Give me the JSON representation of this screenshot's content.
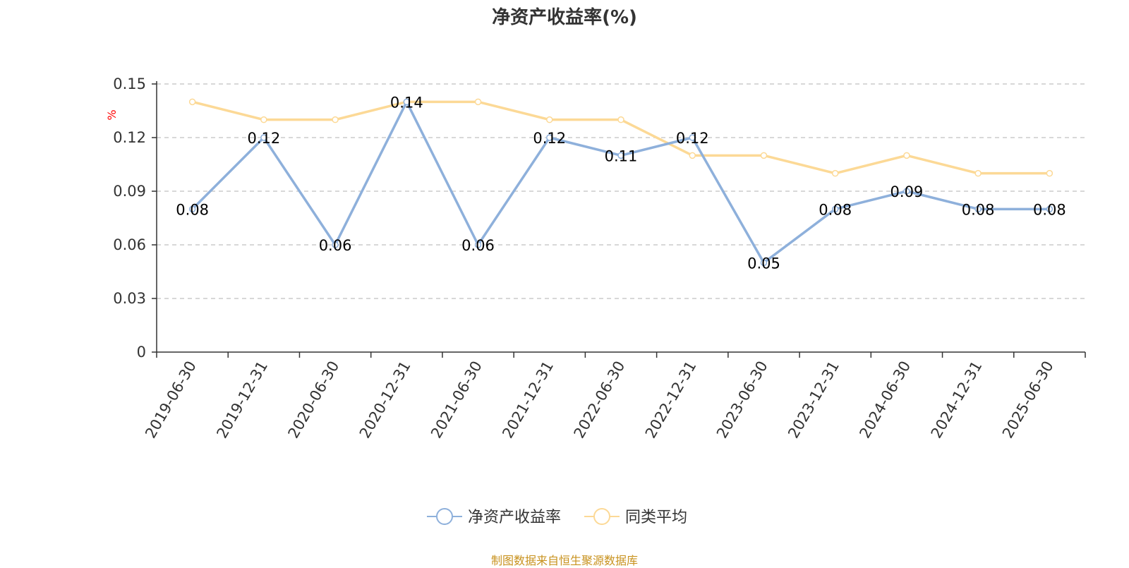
{
  "title": "净资产收益率(%)",
  "source": "制图数据来自恒生聚源数据库",
  "colors": {
    "series1": "#8eb0db",
    "series2": "#fcd996",
    "axis": "#333333",
    "grid": "#cccccc",
    "unit": "#ff0000",
    "source": "#c8921e"
  },
  "chart_data": {
    "type": "line",
    "title": "净资产收益率(%)",
    "ylabel": "%",
    "xlabel": "",
    "ylim": [
      0,
      0.15
    ],
    "yticks": [
      "0",
      "0.03",
      "0.06",
      "0.09",
      "0.12",
      "0.15"
    ],
    "grid": true,
    "legend_position": "bottom",
    "categories": [
      "2019-06-30",
      "2019-12-31",
      "2020-06-30",
      "2020-12-31",
      "2021-06-30",
      "2021-12-31",
      "2022-06-30",
      "2022-12-31",
      "2023-06-30",
      "2023-12-31",
      "2024-06-30",
      "2024-12-31",
      "2025-06-30"
    ],
    "series": [
      {
        "name": "净资产收益率",
        "values": [
          0.08,
          0.12,
          0.06,
          0.14,
          0.06,
          0.12,
          0.11,
          0.12,
          0.05,
          0.08,
          0.09,
          0.08,
          0.08
        ],
        "labels": [
          "0.08",
          "0.12",
          "0.06",
          "0.14",
          "0.06",
          "0.12",
          "0.11",
          "0.12",
          "0.05",
          "0.08",
          "0.09",
          "0.08",
          "0.08"
        ]
      },
      {
        "name": "同类平均",
        "values": [
          0.14,
          0.13,
          0.13,
          0.14,
          0.14,
          0.13,
          0.13,
          0.11,
          0.11,
          0.1,
          0.11,
          0.1,
          0.1
        ]
      }
    ]
  }
}
